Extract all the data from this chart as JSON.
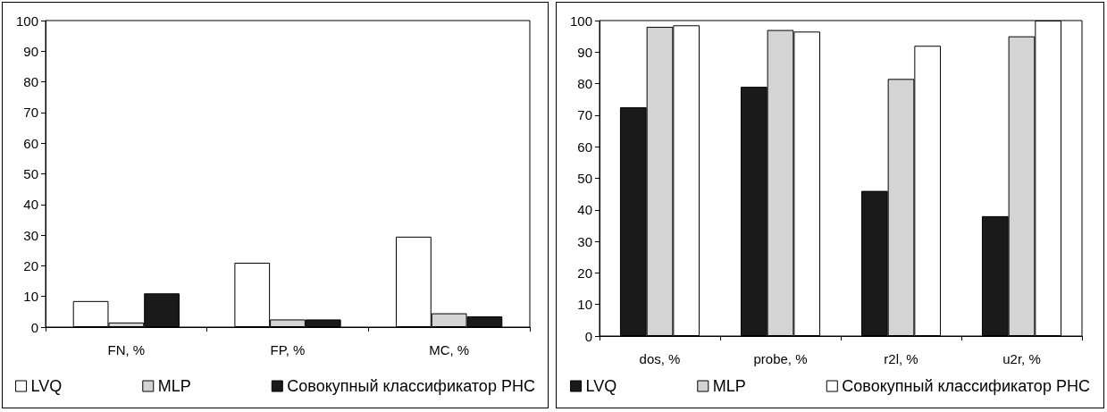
{
  "chart_data": [
    {
      "type": "bar",
      "categories": [
        "FN, %",
        "FP, %",
        "MC, %"
      ],
      "series": [
        {
          "name": "LVQ",
          "color": "#ffffff",
          "values": [
            8.5,
            21,
            29.5
          ]
        },
        {
          "name": "MLP",
          "color": "#d4d4d4",
          "values": [
            1.5,
            2.5,
            4.5
          ]
        },
        {
          "name": "Совокупный классификатор РНС",
          "color": "#1a1a1a",
          "values": [
            11,
            2.5,
            3.5
          ]
        }
      ],
      "ylim": [
        0,
        100
      ],
      "yticks": [
        0,
        10,
        20,
        30,
        40,
        50,
        60,
        70,
        80,
        90,
        100
      ],
      "grid": false,
      "legend": "bottom"
    },
    {
      "type": "bar",
      "categories": [
        "dos, %",
        "probe, %",
        "r2l, %",
        "u2r, %"
      ],
      "series": [
        {
          "name": "LVQ",
          "color": "#1a1a1a",
          "values": [
            72.5,
            79,
            46,
            38
          ]
        },
        {
          "name": "MLP",
          "color": "#d4d4d4",
          "values": [
            98,
            97,
            81.5,
            95
          ]
        },
        {
          "name": "Совокупный классификатор РНС",
          "color": "#ffffff",
          "values": [
            98.5,
            96.5,
            92,
            100
          ]
        }
      ],
      "ylim": [
        0,
        100
      ],
      "yticks": [
        0,
        10,
        20,
        30,
        40,
        50,
        60,
        70,
        80,
        90,
        100
      ],
      "grid": false,
      "legend": "bottom"
    }
  ]
}
